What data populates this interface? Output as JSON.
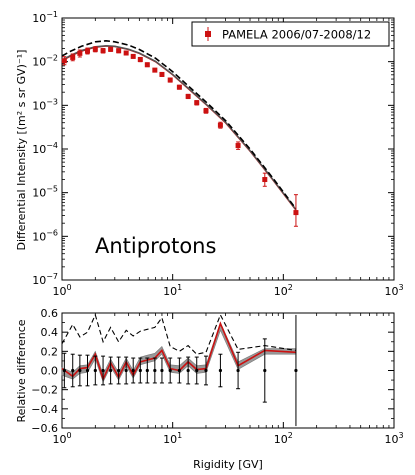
{
  "chart_data": [
    {
      "type": "scatter",
      "ylabel": "Differential Intensity [(m² s sr GV)⁻¹]",
      "annotation": "Antiprotons",
      "legend": {
        "label": "PAMELA 2006/07-2008/12",
        "placement": "top-right"
      },
      "x_scale": "log",
      "y_scale": "log",
      "xlim": [
        1,
        1000
      ],
      "ylim": [
        1e-07,
        0.1
      ],
      "x_tick_labels": [
        {
          "mant": "10",
          "exp": "0"
        },
        {
          "mant": "10",
          "exp": "1"
        },
        {
          "mant": "10",
          "exp": "2"
        },
        {
          "mant": "10",
          "exp": "3"
        }
      ],
      "y_tick_labels": [
        {
          "mant": "10",
          "exp": "-7"
        },
        {
          "mant": "10",
          "exp": "-6"
        },
        {
          "mant": "10",
          "exp": "-5"
        },
        {
          "mant": "10",
          "exp": "-4"
        },
        {
          "mant": "10",
          "exp": "-3"
        },
        {
          "mant": "10",
          "exp": "-2"
        },
        {
          "mant": "10",
          "exp": "-1"
        }
      ],
      "series": [
        {
          "name": "PAMELA 2006/07-2008/12",
          "kind": "points",
          "color": "#cc1111",
          "x": [
            1.05,
            1.25,
            1.45,
            1.7,
            2.0,
            2.35,
            2.75,
            3.25,
            3.8,
            4.4,
            5.1,
            5.9,
            6.9,
            8.0,
            9.5,
            11.5,
            13.8,
            16.5,
            20.0,
            27.0,
            39.0,
            68.0,
            130.0
          ],
          "y": [
            0.0105,
            0.0125,
            0.0155,
            0.0175,
            0.0192,
            0.0178,
            0.0192,
            0.0178,
            0.0158,
            0.0132,
            0.0112,
            0.0085,
            0.0064,
            0.0051,
            0.0038,
            0.0026,
            0.0016,
            0.00115,
            0.00075,
            0.00035,
            0.00012,
            2e-05,
            3.5e-06
          ],
          "y_lo": [
            0.0085,
            0.0105,
            0.0128,
            0.015,
            0.0168,
            0.0158,
            0.0172,
            0.016,
            0.0142,
            0.012,
            0.01,
            0.0077,
            0.0058,
            0.0046,
            0.0034,
            0.00235,
            0.00143,
            0.00102,
            0.00066,
            0.0003,
            9.8e-05,
            1.4e-05,
            1.7e-06
          ],
          "y_hi": [
            0.013,
            0.015,
            0.0185,
            0.0205,
            0.022,
            0.02,
            0.0212,
            0.0198,
            0.0175,
            0.0145,
            0.0125,
            0.0094,
            0.007,
            0.0056,
            0.0042,
            0.00288,
            0.00178,
            0.00128,
            0.00085,
            0.00041,
            0.000145,
            2.8e-05,
            9e-06
          ]
        },
        {
          "kind": "line",
          "color": "#cc1111",
          "dash": "solid",
          "x": [
            1.0,
            1.2,
            1.5,
            2.0,
            2.5,
            3.0,
            4.0,
            5.0,
            7.0,
            10.0,
            15.0,
            20.0,
            30.0,
            50.0,
            80.0,
            130.0
          ],
          "y": [
            0.0105,
            0.0135,
            0.0175,
            0.0215,
            0.0228,
            0.0222,
            0.019,
            0.0155,
            0.01,
            0.005,
            0.002,
            0.00105,
            0.0004,
            9e-05,
            2e-05,
            4e-06
          ]
        },
        {
          "kind": "line",
          "color": "#555555",
          "dash": "solid",
          "x": [
            1.0,
            1.2,
            1.5,
            2.0,
            2.5,
            3.0,
            4.0,
            5.0,
            7.0,
            10.0,
            15.0,
            20.0,
            30.0,
            50.0,
            80.0,
            130.0
          ],
          "y": [
            0.0108,
            0.014,
            0.018,
            0.022,
            0.0232,
            0.0225,
            0.0193,
            0.0157,
            0.0102,
            0.0051,
            0.00205,
            0.00107,
            0.00041,
            9.2e-05,
            2.05e-05,
            4.1e-06
          ]
        },
        {
          "kind": "line",
          "color": "#000000",
          "dash": "dashed",
          "x": [
            1.0,
            1.2,
            1.5,
            2.0,
            2.5,
            3.0,
            4.0,
            5.0,
            7.0,
            10.0,
            15.0,
            20.0,
            30.0,
            50.0,
            80.0,
            130.0
          ],
          "y": [
            0.0135,
            0.0175,
            0.0225,
            0.0285,
            0.03,
            0.0285,
            0.024,
            0.019,
            0.012,
            0.0059,
            0.0023,
            0.0012,
            0.00045,
            0.0001,
            2.2e-05,
            4.3e-06
          ]
        }
      ]
    },
    {
      "type": "line",
      "xlabel": "Rigidity [GV]",
      "ylabel": "Relative difference",
      "x_scale": "log",
      "xlim": [
        1,
        1000
      ],
      "ylim": [
        -0.6,
        0.6
      ],
      "x_tick_labels": [
        {
          "mant": "10",
          "exp": "0"
        },
        {
          "mant": "10",
          "exp": "1"
        },
        {
          "mant": "10",
          "exp": "2"
        },
        {
          "mant": "10",
          "exp": "3"
        }
      ],
      "y_ticks": [
        -0.6,
        -0.4,
        -0.2,
        0.0,
        0.2,
        0.4,
        0.6
      ],
      "y_tick_labels": [
        "−0.6",
        "−0.4",
        "−0.2",
        "0.0",
        "0.2",
        "0.4",
        "0.6"
      ],
      "points": {
        "color": "#000000",
        "x": [
          1.05,
          1.25,
          1.45,
          1.7,
          2.0,
          2.35,
          2.75,
          3.25,
          3.8,
          4.4,
          5.1,
          5.9,
          6.9,
          8.0,
          9.5,
          11.5,
          13.8,
          16.5,
          20.0,
          27.0,
          39.0,
          68.0,
          130.0
        ],
        "err": [
          0.18,
          0.17,
          0.16,
          0.16,
          0.15,
          0.15,
          0.14,
          0.14,
          0.14,
          0.13,
          0.13,
          0.13,
          0.13,
          0.13,
          0.13,
          0.13,
          0.14,
          0.14,
          0.15,
          0.17,
          0.19,
          0.33,
          0.58
        ]
      },
      "band": {
        "color": "#999999",
        "x": [
          1.0,
          1.25,
          1.45,
          1.7,
          2.0,
          2.35,
          2.75,
          3.25,
          3.8,
          4.4,
          5.1,
          5.9,
          6.9,
          8.0,
          9.5,
          11.5,
          13.8,
          16.5,
          20.0,
          27.0,
          39.0,
          68.0,
          130.0
        ],
        "lo": [
          -0.05,
          -0.09,
          -0.03,
          -0.02,
          0.12,
          -0.12,
          0.04,
          -0.1,
          0.05,
          -0.08,
          0.06,
          0.08,
          0.1,
          0.17,
          -0.02,
          -0.03,
          0.05,
          -0.03,
          -0.02,
          0.42,
          0.01,
          0.17,
          0.17
        ],
        "hi": [
          0.03,
          -0.02,
          0.05,
          0.06,
          0.2,
          -0.04,
          0.12,
          -0.02,
          0.13,
          0.0,
          0.14,
          0.16,
          0.18,
          0.25,
          0.06,
          0.05,
          0.13,
          0.05,
          0.06,
          0.5,
          0.09,
          0.23,
          0.23
        ]
      },
      "series": [
        {
          "kind": "line",
          "color": "#cc1111",
          "dash": "solid",
          "x": [
            1.0,
            1.25,
            1.45,
            1.7,
            2.0,
            2.35,
            2.75,
            3.25,
            3.8,
            4.4,
            5.1,
            5.9,
            6.9,
            8.0,
            9.5,
            11.5,
            13.8,
            16.5,
            20.0,
            27.0,
            39.0,
            68.0,
            130.0
          ],
          "y": [
            0.02,
            -0.06,
            0.02,
            0.03,
            0.17,
            -0.09,
            0.08,
            -0.07,
            0.09,
            -0.05,
            0.09,
            0.11,
            0.13,
            0.21,
            0.02,
            0.0,
            0.09,
            0.01,
            0.02,
            0.49,
            0.05,
            0.21,
            0.19
          ]
        },
        {
          "kind": "line",
          "color": "#000000",
          "dash": "dashed",
          "x": [
            1.0,
            1.25,
            1.45,
            1.7,
            2.0,
            2.35,
            2.75,
            3.25,
            3.8,
            4.4,
            5.1,
            5.9,
            6.9,
            8.0,
            9.5,
            11.5,
            13.8,
            16.5,
            20.0,
            27.0,
            39.0,
            68.0,
            130.0
          ],
          "y": [
            0.28,
            0.48,
            0.35,
            0.4,
            0.58,
            0.3,
            0.45,
            0.3,
            0.42,
            0.36,
            0.41,
            0.43,
            0.45,
            0.55,
            0.25,
            0.2,
            0.26,
            0.17,
            0.19,
            0.58,
            0.22,
            0.26,
            0.21
          ]
        }
      ]
    }
  ]
}
